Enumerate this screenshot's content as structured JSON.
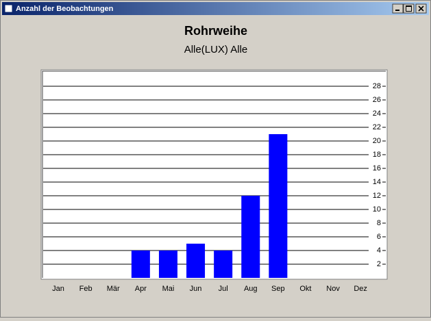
{
  "window": {
    "title": "Anzahl der Beobachtungen"
  },
  "chart_data": {
    "type": "bar",
    "title": "Rohrweihe",
    "subtitle": "Alle(LUX) Alle",
    "categories": [
      "Jan",
      "Feb",
      "Mär",
      "Apr",
      "Mai",
      "Jun",
      "Jul",
      "Aug",
      "Sep",
      "Okt",
      "Nov",
      "Dez"
    ],
    "values": [
      0,
      0,
      0,
      4,
      4,
      5,
      4,
      12,
      21,
      0,
      0,
      0
    ],
    "color": "#0000ff",
    "ylim": [
      0,
      30
    ],
    "yticks": [
      2,
      4,
      6,
      8,
      10,
      12,
      14,
      16,
      18,
      20,
      22,
      24,
      26,
      28
    ],
    "grid": true
  }
}
